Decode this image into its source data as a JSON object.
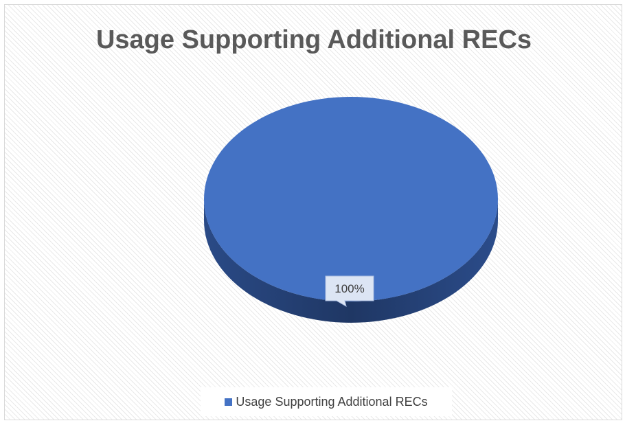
{
  "chart_data": {
    "type": "pie",
    "title": "Usage Supporting Additional RECs",
    "categories": [
      "Usage Supporting Additional RECs"
    ],
    "values": [
      100
    ],
    "data_labels": [
      "100%"
    ],
    "legend": {
      "entries": [
        "Usage Supporting Additional RECs"
      ],
      "position": "bottom"
    },
    "style": "3d",
    "colors": {
      "slice_top": "#4472c4",
      "slice_side": "#1f3764",
      "title": "#595959",
      "label_box": "#dce5f4",
      "label_border": "#a6b9de"
    }
  }
}
